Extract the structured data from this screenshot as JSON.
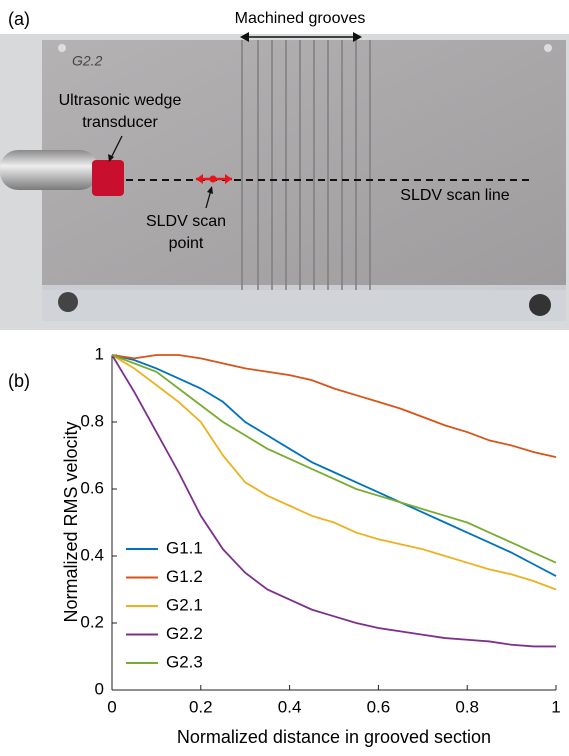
{
  "photo": {
    "panel_label": "(a)",
    "plate_marking": "G2.2",
    "grooves_label": "Machined grooves",
    "transducer_label": [
      "Ultrasonic wedge",
      "transducer"
    ],
    "scan_point_label": [
      "SLDV scan",
      "point"
    ],
    "scan_line_label": "SLDV scan line"
  },
  "chart_data": {
    "type": "line",
    "panel_label": "(b)",
    "x_label": "Normalized distance in grooved section",
    "y_label": "Normalized RMS velocity",
    "x": [
      0,
      0.05,
      0.1,
      0.15,
      0.2,
      0.25,
      0.3,
      0.35,
      0.4,
      0.45,
      0.5,
      0.55,
      0.6,
      0.65,
      0.7,
      0.75,
      0.8,
      0.85,
      0.9,
      0.95,
      1
    ],
    "series": [
      {
        "name": "G1.1",
        "color": "#0072bd",
        "values": [
          1,
          0.985,
          0.96,
          0.93,
          0.9,
          0.86,
          0.8,
          0.76,
          0.72,
          0.68,
          0.65,
          0.62,
          0.59,
          0.56,
          0.53,
          0.5,
          0.47,
          0.44,
          0.41,
          0.375,
          0.34
        ]
      },
      {
        "name": "G1.2",
        "color": "#d95319",
        "values": [
          1,
          0.99,
          1,
          1,
          0.99,
          0.975,
          0.96,
          0.95,
          0.94,
          0.925,
          0.9,
          0.88,
          0.86,
          0.84,
          0.815,
          0.79,
          0.77,
          0.745,
          0.73,
          0.71,
          0.695
        ]
      },
      {
        "name": "G2.1",
        "color": "#edb120",
        "values": [
          1,
          0.96,
          0.91,
          0.86,
          0.8,
          0.7,
          0.62,
          0.58,
          0.55,
          0.52,
          0.5,
          0.47,
          0.45,
          0.435,
          0.42,
          0.4,
          0.38,
          0.36,
          0.345,
          0.325,
          0.3
        ]
      },
      {
        "name": "G2.2",
        "color": "#7e2f8e",
        "values": [
          1,
          0.89,
          0.77,
          0.65,
          0.52,
          0.42,
          0.35,
          0.3,
          0.27,
          0.24,
          0.22,
          0.2,
          0.185,
          0.175,
          0.165,
          0.155,
          0.15,
          0.145,
          0.135,
          0.13,
          0.13
        ]
      },
      {
        "name": "G2.3",
        "color": "#77ac30",
        "values": [
          1,
          0.975,
          0.95,
          0.9,
          0.85,
          0.8,
          0.76,
          0.72,
          0.69,
          0.66,
          0.63,
          0.6,
          0.58,
          0.56,
          0.54,
          0.52,
          0.5,
          0.47,
          0.44,
          0.41,
          0.38
        ]
      }
    ],
    "xlim": [
      0,
      1
    ],
    "ylim": [
      0,
      1
    ],
    "xticks": [
      0,
      0.2,
      0.4,
      0.6,
      0.8,
      1
    ],
    "yticks": [
      0,
      0.2,
      0.4,
      0.6,
      0.8,
      1
    ],
    "legend": "lower left",
    "grid": false
  }
}
